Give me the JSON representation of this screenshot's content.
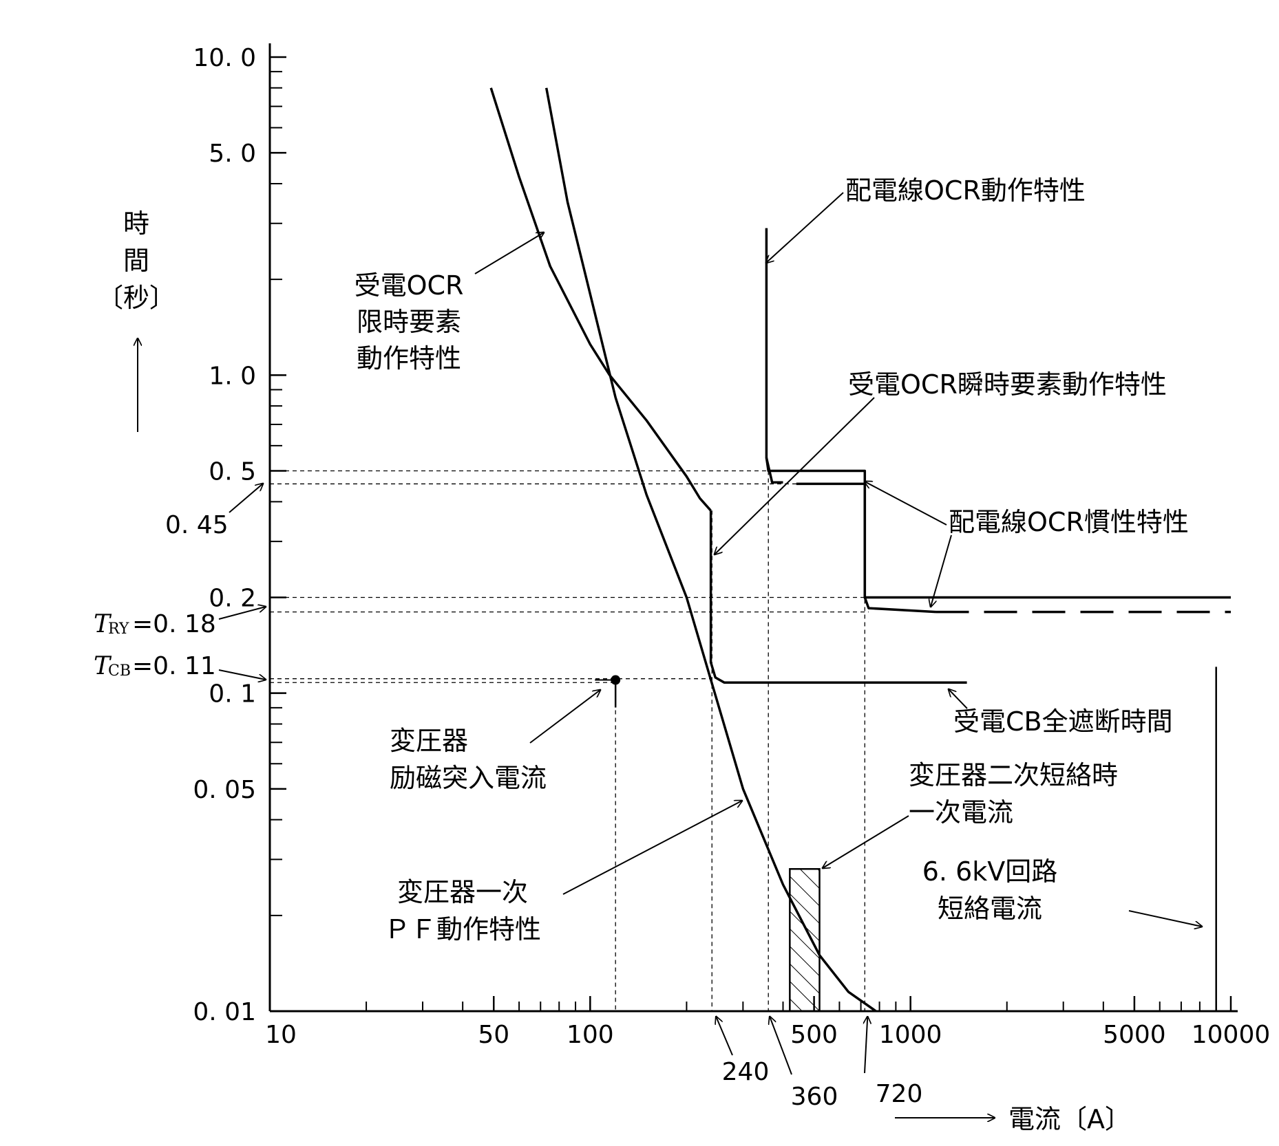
{
  "chart_data": {
    "type": "line",
    "title": "",
    "x_scale": "log",
    "y_scale": "log",
    "xlim": [
      10,
      10000
    ],
    "ylim": [
      0.01,
      10
    ],
    "xlabel": "電流〔A〕",
    "ylabel_chars": [
      "時",
      "間",
      "〔秒〕"
    ],
    "x_ticks": [
      {
        "v": 10,
        "label": "10"
      },
      {
        "v": 50,
        "label": "50"
      },
      {
        "v": 100,
        "label": "100"
      },
      {
        "v": 500,
        "label": "500"
      },
      {
        "v": 1000,
        "label": "1000"
      },
      {
        "v": 5000,
        "label": "5000"
      },
      {
        "v": 10000,
        "label": "10000"
      }
    ],
    "y_ticks": [
      {
        "v": 10,
        "label": "10. 0"
      },
      {
        "v": 5,
        "label": "5. 0"
      },
      {
        "v": 1,
        "label": "1. 0"
      },
      {
        "v": 0.5,
        "label": "0. 5"
      },
      {
        "v": 0.2,
        "label": "0. 2"
      },
      {
        "v": 0.1,
        "label": "0. 1"
      },
      {
        "v": 0.05,
        "label": "0. 05"
      },
      {
        "v": 0.01,
        "label": "0. 01"
      }
    ],
    "marked_currents": [
      {
        "v": 240,
        "label": "240"
      },
      {
        "v": 360,
        "label": "360"
      },
      {
        "v": 720,
        "label": "720"
      }
    ],
    "marked_times": [
      {
        "label": "0. 45"
      },
      {
        "symbol": "T",
        "sub": "RY",
        "value": "=0. 18"
      },
      {
        "symbol": "T",
        "sub": "CB",
        "value": "=0. 11"
      }
    ],
    "series": [
      {
        "name": "受電OCR限時要素動作特性",
        "points": [
          [
            49,
            8
          ],
          [
            60,
            4.2
          ],
          [
            75,
            2.2
          ],
          [
            100,
            1.25
          ],
          [
            115,
            1.0
          ],
          [
            150,
            0.72
          ],
          [
            200,
            0.48
          ],
          [
            220,
            0.41
          ],
          [
            238,
            0.375
          ]
        ]
      },
      {
        "name": "受電OCR瞬時要素動作特性",
        "points": [
          [
            238,
            0.375
          ],
          [
            238,
            0.125
          ],
          [
            246,
            0.112
          ],
          [
            262,
            0.108
          ],
          [
            1500,
            0.108
          ]
        ]
      },
      {
        "name": "変圧器一次PF動作特性",
        "points": [
          [
            73,
            8
          ],
          [
            85,
            3.5
          ],
          [
            100,
            1.8
          ],
          [
            120,
            0.85
          ],
          [
            150,
            0.42
          ],
          [
            200,
            0.2
          ],
          [
            245,
            0.1
          ],
          [
            300,
            0.05
          ],
          [
            400,
            0.025
          ],
          [
            520,
            0.015
          ],
          [
            640,
            0.0115
          ],
          [
            780,
            0.01
          ]
        ]
      },
      {
        "name": "配電線OCR動作特性",
        "points": [
          [
            355,
            2.9
          ],
          [
            355,
            0.55
          ],
          [
            360,
            0.5
          ],
          [
            720,
            0.5
          ],
          [
            720,
            0.2
          ],
          [
            10000,
            0.2
          ]
        ]
      },
      {
        "name": "配電線OCR慣性特性",
        "points": [
          [
            355,
            0.55
          ],
          [
            370,
            0.46
          ],
          [
            400,
            0.46
          ]
        ]
      },
      {
        "name": "配電線OCR慣性特性_2",
        "points": [
          [
            440,
            0.455
          ],
          [
            720,
            0.455
          ],
          [
            720,
            0.2
          ],
          [
            740,
            0.185
          ],
          [
            1200,
            0.18
          ]
        ]
      },
      {
        "name": "配電線OCR慣性特性_3",
        "dashed": true,
        "points": [
          [
            1200,
            0.18
          ],
          [
            10000,
            0.18
          ]
        ]
      }
    ],
    "annotations": [
      {
        "key": "ocr_dist",
        "lines": [
          "配電線OCR動作特性"
        ]
      },
      {
        "key": "ocr_limit",
        "lines": [
          "受電OCR",
          "限時要素",
          "動作特性"
        ]
      },
      {
        "key": "ocr_inst",
        "lines": [
          "受電OCR瞬時要素動作特性"
        ]
      },
      {
        "key": "ocr_inertia",
        "lines": [
          "配電線OCR慣性特性"
        ]
      },
      {
        "key": "cb",
        "lines": [
          "受電CB全遮断時間"
        ]
      },
      {
        "key": "inrush",
        "lines": [
          "変圧器",
          "励磁突入電流"
        ]
      },
      {
        "key": "secondary",
        "lines": [
          "変圧器二次短絡時",
          "一次電流"
        ]
      },
      {
        "key": "pf",
        "lines": [
          "変圧器一次",
          "ＰＦ動作特性"
        ]
      },
      {
        "key": "short",
        "lines": [
          "6. 6kV回路",
          "短絡電流"
        ]
      }
    ],
    "inrush_point": {
      "x": 120,
      "y": 0.11
    },
    "hatched_band": {
      "x_from": 420,
      "x_to": 520,
      "y_from": 0.01,
      "y_to": 0.028
    },
    "short_circuit_line": {
      "x": 9000,
      "y_from": 0.01,
      "y_to": 0.121
    }
  }
}
